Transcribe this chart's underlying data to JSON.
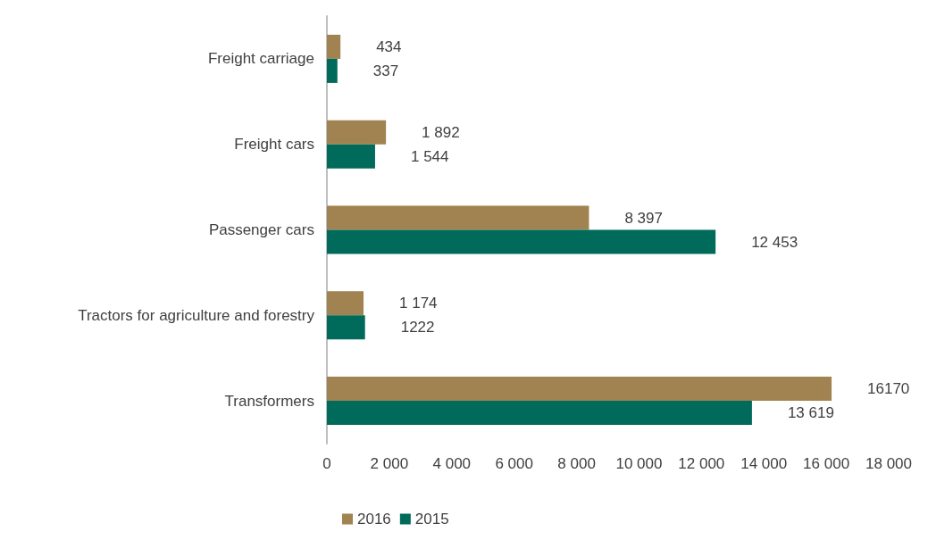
{
  "chart_data": {
    "type": "bar",
    "orientation": "horizontal",
    "categories": [
      "Freight carriage",
      "Freight cars",
      "Passenger cars",
      "Tractors for agriculture and forestry",
      "Transformers"
    ],
    "series": [
      {
        "name": "2016",
        "color": "#a08350",
        "values": [
          434,
          1892,
          8397,
          1174,
          16170
        ],
        "value_labels": [
          "434",
          "1 892",
          "8 397",
          "1 174",
          "16170"
        ]
      },
      {
        "name": "2015",
        "color": "#006a5b",
        "values": [
          337,
          1544,
          12453,
          1222,
          13619
        ],
        "value_labels": [
          "337",
          "1 544",
          "12 453",
          "1222",
          "13 619"
        ]
      }
    ],
    "xlim": [
      0,
      18000
    ],
    "xticks": [
      0,
      {
        "value": 2000,
        "label": "2 000"
      },
      {
        "value": 4000,
        "label": "4 000"
      },
      {
        "value": 6000,
        "label": "6 000"
      },
      {
        "value": 8000,
        "label": "8 000"
      },
      {
        "value": 10000,
        "label": "10 000"
      },
      {
        "value": 12000,
        "label": "12 000"
      },
      {
        "value": 14000,
        "label": "14 000"
      },
      {
        "value": 16000,
        "label": "16 000"
      },
      {
        "value": 18000,
        "label": "18 000"
      }
    ],
    "grid": false,
    "legend": "bottom"
  }
}
